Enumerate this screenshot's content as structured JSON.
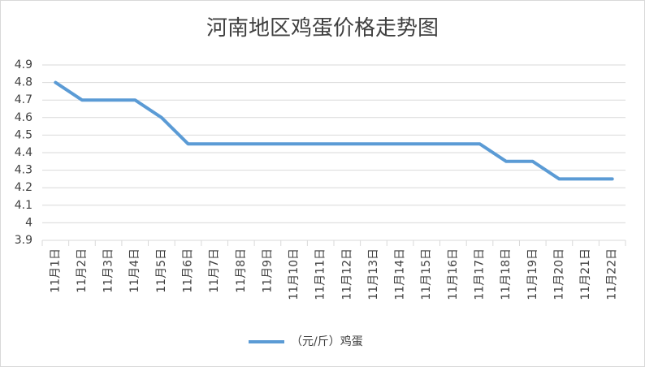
{
  "chart_data": {
    "type": "line",
    "title": "河南地区鸡蛋价格走势图",
    "categories": [
      "11月1日",
      "11月2日",
      "11月3日",
      "11月4日",
      "11月5日",
      "11月6日",
      "11月7日",
      "11月8日",
      "11月9日",
      "11月10日",
      "11月11日",
      "11月12日",
      "11月13日",
      "11月14日",
      "11月15日",
      "11月16日",
      "11月17日",
      "11月18日",
      "11月19日",
      "11月20日",
      "11月21日",
      "11月22日"
    ],
    "series": [
      {
        "name": "（元/斤）鸡蛋",
        "color": "#5b9bd5",
        "values": [
          4.8,
          4.7,
          4.7,
          4.7,
          4.6,
          4.45,
          4.45,
          4.45,
          4.45,
          4.45,
          4.45,
          4.45,
          4.45,
          4.45,
          4.45,
          4.45,
          4.45,
          4.35,
          4.35,
          4.25,
          4.25,
          4.25
        ]
      }
    ],
    "ylim": [
      3.9,
      4.9
    ],
    "yticks": [
      3.9,
      4,
      4.1,
      4.2,
      4.3,
      4.4,
      4.5,
      4.6,
      4.7,
      4.8,
      4.9
    ],
    "grid": true,
    "legend": "bottom"
  }
}
